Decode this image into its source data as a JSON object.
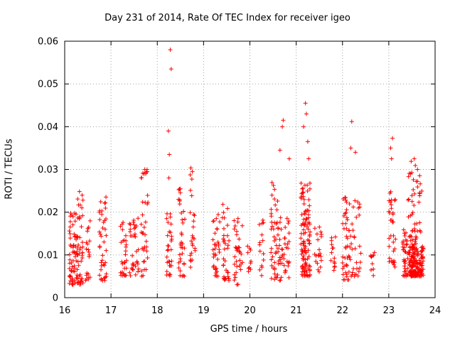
{
  "chart_data": {
    "type": "scatter",
    "title": "Day 231 of 2014, Rate Of TEC Index for receiver igeo",
    "xlabel": "GPS time / hours",
    "ylabel": "ROTI / TECUs",
    "xlim": [
      16,
      24
    ],
    "ylim": [
      0,
      0.06
    ],
    "xticks": [
      16,
      17,
      18,
      19,
      20,
      21,
      22,
      23,
      24
    ],
    "yticks": [
      0,
      0.01,
      0.02,
      0.03,
      0.04,
      0.05,
      0.06
    ],
    "ytick_labels": [
      "0",
      "0.01",
      "0.02",
      "0.03",
      "0.04",
      "0.05",
      "0.06"
    ],
    "grid": true,
    "marker": "+",
    "color": "#ff0000",
    "clusters": [
      {
        "x": [
          16.1,
          16.28
        ],
        "y": [
          0.003,
          0.02
        ],
        "n": 70
      },
      {
        "x": [
          16.28,
          16.4
        ],
        "y": [
          0.003,
          0.026
        ],
        "n": 40
      },
      {
        "x": [
          16.45,
          16.55
        ],
        "y": [
          0.004,
          0.018
        ],
        "n": 20
      },
      {
        "x": [
          16.75,
          16.9
        ],
        "y": [
          0.004,
          0.024
        ],
        "n": 40
      },
      {
        "x": [
          17.2,
          17.35
        ],
        "y": [
          0.005,
          0.018
        ],
        "n": 30
      },
      {
        "x": [
          17.4,
          17.6
        ],
        "y": [
          0.005,
          0.019
        ],
        "n": 35
      },
      {
        "x": [
          17.65,
          17.8
        ],
        "y": [
          0.005,
          0.03
        ],
        "n": 35
      },
      {
        "x": [
          18.2,
          18.32
        ],
        "y": [
          0.005,
          0.02
        ],
        "n": 30
      },
      {
        "x": [
          18.45,
          18.6
        ],
        "y": [
          0.005,
          0.026
        ],
        "n": 35
      },
      {
        "x": [
          18.7,
          18.82
        ],
        "y": [
          0.006,
          0.031
        ],
        "n": 25
      },
      {
        "x": [
          19.2,
          19.35
        ],
        "y": [
          0.005,
          0.02
        ],
        "n": 35
      },
      {
        "x": [
          19.4,
          19.55
        ],
        "y": [
          0.004,
          0.022
        ],
        "n": 35
      },
      {
        "x": [
          19.65,
          19.85
        ],
        "y": [
          0.003,
          0.019
        ],
        "n": 35
      },
      {
        "x": [
          19.95,
          20.05
        ],
        "y": [
          0.006,
          0.013
        ],
        "n": 10
      },
      {
        "x": [
          20.2,
          20.3
        ],
        "y": [
          0.005,
          0.021
        ],
        "n": 15
      },
      {
        "x": [
          20.45,
          20.62
        ],
        "y": [
          0.004,
          0.027
        ],
        "n": 45
      },
      {
        "x": [
          20.62,
          20.85
        ],
        "y": [
          0.004,
          0.02
        ],
        "n": 40
      },
      {
        "x": [
          21.1,
          21.3
        ],
        "y": [
          0.005,
          0.027
        ],
        "n": 110
      },
      {
        "x": [
          21.4,
          21.55
        ],
        "y": [
          0.006,
          0.018
        ],
        "n": 20
      },
      {
        "x": [
          21.75,
          21.85
        ],
        "y": [
          0.005,
          0.015
        ],
        "n": 15
      },
      {
        "x": [
          22.0,
          22.15
        ],
        "y": [
          0.004,
          0.024
        ],
        "n": 40
      },
      {
        "x": [
          22.15,
          22.4
        ],
        "y": [
          0.005,
          0.024
        ],
        "n": 35
      },
      {
        "x": [
          22.6,
          22.7
        ],
        "y": [
          0.005,
          0.012
        ],
        "n": 10
      },
      {
        "x": [
          23.0,
          23.15
        ],
        "y": [
          0.004,
          0.025
        ],
        "n": 35
      },
      {
        "x": [
          23.3,
          23.6
        ],
        "y": [
          0.005,
          0.016
        ],
        "n": 90
      },
      {
        "x": [
          23.45,
          23.75
        ],
        "y": [
          0.005,
          0.012
        ],
        "n": 130
      },
      {
        "x": [
          23.4,
          23.72
        ],
        "y": [
          0.015,
          0.032
        ],
        "n": 35
      }
    ],
    "highlights": [
      {
        "x": 18.28,
        "y": 0.058
      },
      {
        "x": 18.3,
        "y": 0.0535
      },
      {
        "x": 18.24,
        "y": 0.039
      },
      {
        "x": 18.26,
        "y": 0.0335
      },
      {
        "x": 18.25,
        "y": 0.028
      },
      {
        "x": 21.2,
        "y": 0.0455
      },
      {
        "x": 21.22,
        "y": 0.043
      },
      {
        "x": 21.16,
        "y": 0.04
      },
      {
        "x": 21.25,
        "y": 0.0365
      },
      {
        "x": 21.27,
        "y": 0.0325
      },
      {
        "x": 20.72,
        "y": 0.0415
      },
      {
        "x": 20.7,
        "y": 0.04
      },
      {
        "x": 20.65,
        "y": 0.0345
      },
      {
        "x": 20.85,
        "y": 0.0325
      },
      {
        "x": 22.2,
        "y": 0.0412
      },
      {
        "x": 22.18,
        "y": 0.035
      },
      {
        "x": 22.28,
        "y": 0.034
      },
      {
        "x": 23.08,
        "y": 0.0373
      },
      {
        "x": 23.04,
        "y": 0.035
      },
      {
        "x": 23.06,
        "y": 0.0325
      },
      {
        "x": 17.73,
        "y": 0.03
      },
      {
        "x": 17.75,
        "y": 0.029
      },
      {
        "x": 23.55,
        "y": 0.0325
      },
      {
        "x": 23.62,
        "y": 0.03
      }
    ]
  }
}
